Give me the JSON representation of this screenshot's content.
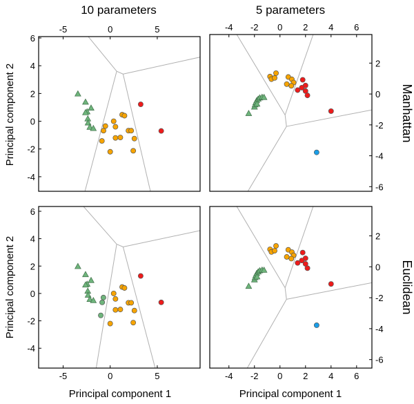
{
  "figure": {
    "column_titles": [
      "10 parameters",
      "5 parameters"
    ],
    "row_labels": [
      "Manhattan",
      "Euclidean"
    ],
    "ylabels": [
      "Principal component 2",
      "Principal component 2"
    ],
    "xlabels": [
      "Principal component 1",
      "Principal component 1"
    ],
    "colors": {
      "green": "#6fb57c",
      "orange": "#f7a400",
      "red": "#ee1b1b",
      "blue": "#1a9ee8",
      "edge": "#555555",
      "voronoi": "#b0b0b0"
    }
  },
  "chart_data": [
    {
      "type": "scatter",
      "panel": "10 parameters / Manhattan",
      "xlim": [
        -7.6,
        9.55
      ],
      "ylim": [
        -5.05,
        6.1
      ],
      "xticks": [
        -5,
        0,
        5
      ],
      "yticks": [
        6,
        4,
        2,
        0,
        -2,
        -4
      ],
      "xtick_side": "top",
      "ytick_side": "left",
      "series": [
        {
          "name": "cluster-green-triangle",
          "marker": "triangle",
          "color": "green",
          "points": [
            [
              -3.43,
              1.97
            ],
            [
              -2.62,
              1.38
            ],
            [
              -2.03,
              0.95
            ],
            [
              -2.45,
              0.68
            ],
            [
              -2.62,
              0.62
            ],
            [
              -2.38,
              0.17
            ],
            [
              -2.35,
              -0.12
            ],
            [
              -2.16,
              -0.43
            ],
            [
              -1.79,
              -0.52
            ]
          ]
        },
        {
          "name": "cluster-orange",
          "marker": "circle",
          "color": "orange",
          "points": [
            [
              1.27,
              0.47
            ],
            [
              1.52,
              0.4
            ],
            [
              0.37,
              0
            ],
            [
              -0.51,
              -0.35
            ],
            [
              0.56,
              -0.4
            ],
            [
              -0.71,
              -0.68
            ],
            [
              1.94,
              -0.68
            ],
            [
              2.23,
              -0.68
            ],
            [
              0.56,
              -1.2
            ],
            [
              1.08,
              -1.17
            ],
            [
              2.57,
              -1.25
            ],
            [
              -0.88,
              -1.42
            ],
            [
              0,
              -2.2
            ],
            [
              2.45,
              -2.13
            ]
          ]
        },
        {
          "name": "cluster-red",
          "marker": "circle",
          "color": "red",
          "points": [
            [
              3.24,
              1.22
            ],
            [
              5.42,
              -0.7
            ]
          ]
        }
      ],
      "voronoi": [
        [
          [
            -2.57,
            6.3
          ],
          [
            0.69,
            3.6
          ]
        ],
        [
          [
            0.69,
            3.6
          ],
          [
            1.37,
            3.4
          ]
        ],
        [
          [
            1.37,
            3.4
          ],
          [
            9.6,
            4.63
          ]
        ],
        [
          [
            0.69,
            3.6
          ],
          [
            -2.7,
            -5.1
          ]
        ],
        [
          [
            1.37,
            3.4
          ],
          [
            4.29,
            -5.1
          ]
        ]
      ]
    },
    {
      "type": "scatter",
      "panel": "5 parameters / Manhattan",
      "xlim": [
        -5.5,
        7.2
      ],
      "ylim": [
        -6.3,
        3.85
      ],
      "xticks": [
        -4,
        -2,
        0,
        2,
        4,
        6
      ],
      "yticks": [
        2,
        0,
        -2,
        -4,
        -6
      ],
      "xtick_side": "top",
      "ytick_side": "right",
      "series": [
        {
          "name": "cluster-green-triangle",
          "marker": "triangle",
          "color": "green",
          "points": [
            [
              -2.45,
              -1.26
            ],
            [
              -2.0,
              -0.84
            ],
            [
              -1.95,
              -0.7
            ],
            [
              -1.89,
              -0.55
            ],
            [
              -1.82,
              -0.43
            ],
            [
              -1.71,
              -0.33
            ],
            [
              -1.58,
              -0.25
            ],
            [
              -1.4,
              -0.21
            ],
            [
              -1.25,
              -0.22
            ],
            [
              -1.8,
              -0.65
            ]
          ]
        },
        {
          "name": "cluster-orange",
          "marker": "circle",
          "color": "orange",
          "points": [
            [
              -0.78,
              1.13
            ],
            [
              -0.67,
              0.96
            ],
            [
              -0.42,
              1.04
            ],
            [
              -0.31,
              1.35
            ],
            [
              0.65,
              1.1
            ],
            [
              0.93,
              0.95
            ],
            [
              1.07,
              0.74
            ],
            [
              0.53,
              0.64
            ],
            [
              0.89,
              0.53
            ]
          ]
        },
        {
          "name": "cluster-red",
          "marker": "circle",
          "color": "red",
          "points": [
            [
              1.78,
              0.92
            ],
            [
              2.0,
              0.55
            ],
            [
              1.71,
              0.41
            ],
            [
              1.38,
              0.25
            ],
            [
              2.0,
              0.19
            ],
            [
              2.15,
              -0.09
            ],
            [
              4.0,
              -1.11
            ]
          ]
        },
        {
          "name": "cluster-blue",
          "marker": "circle",
          "color": "blue",
          "points": [
            [
              2.87,
              -3.78
            ]
          ]
        }
      ],
      "voronoi": [
        [
          [
            -3.42,
            3.9
          ],
          [
            0.4,
            -1.36
          ]
        ],
        [
          [
            0.4,
            -1.36
          ],
          [
            2.62,
            3.9
          ]
        ],
        [
          [
            0.4,
            -1.36
          ],
          [
            0.51,
            -2.1
          ]
        ],
        [
          [
            0.51,
            -2.1
          ],
          [
            7.25,
            -1.02
          ]
        ],
        [
          [
            0.51,
            -2.1
          ],
          [
            -2.55,
            -6.35
          ]
        ]
      ]
    },
    {
      "type": "scatter",
      "panel": "10 parameters / Euclidean",
      "xlim": [
        -7.6,
        9.55
      ],
      "ylim": [
        -5.45,
        6.35
      ],
      "xticks": [
        -5,
        0,
        5
      ],
      "yticks": [
        6,
        4,
        2,
        0,
        -2,
        -4
      ],
      "xtick_side": "bottom",
      "ytick_side": "left",
      "series": [
        {
          "name": "cluster-green-triangle",
          "marker": "triangle",
          "color": "green",
          "points": [
            [
              -3.43,
              1.97
            ],
            [
              -2.62,
              1.38
            ],
            [
              -2.03,
              0.95
            ],
            [
              -2.45,
              0.68
            ],
            [
              -2.62,
              0.62
            ],
            [
              -2.38,
              0.17
            ],
            [
              -2.35,
              -0.12
            ],
            [
              -2.16,
              -0.43
            ],
            [
              -1.79,
              -0.52
            ]
          ]
        },
        {
          "name": "cluster-green-circle",
          "marker": "circle",
          "color": "green",
          "points": [
            [
              -0.72,
              -0.3
            ],
            [
              -0.85,
              -0.65
            ],
            [
              -1.0,
              -1.6
            ]
          ]
        },
        {
          "name": "cluster-orange",
          "marker": "circle",
          "color": "orange",
          "points": [
            [
              1.27,
              0.47
            ],
            [
              1.52,
              0.4
            ],
            [
              0.37,
              0
            ],
            [
              0.56,
              -0.4
            ],
            [
              1.94,
              -0.68
            ],
            [
              2.23,
              -0.68
            ],
            [
              0.56,
              -1.2
            ],
            [
              1.08,
              -1.17
            ],
            [
              2.57,
              -1.25
            ],
            [
              0,
              -2.2
            ],
            [
              2.45,
              -2.13
            ]
          ]
        },
        {
          "name": "cluster-red",
          "marker": "circle",
          "color": "red",
          "points": [
            [
              3.24,
              1.28
            ],
            [
              5.42,
              -0.65
            ]
          ]
        }
      ],
      "voronoi": [
        [
          [
            -2.9,
            6.4
          ],
          [
            0.69,
            3.6
          ]
        ],
        [
          [
            0.69,
            3.6
          ],
          [
            1.37,
            3.4
          ]
        ],
        [
          [
            1.37,
            3.4
          ],
          [
            9.6,
            4.6
          ]
        ],
        [
          [
            0.69,
            3.6
          ],
          [
            -1.5,
            -5.5
          ]
        ],
        [
          [
            1.37,
            3.4
          ],
          [
            4.8,
            -5.5
          ]
        ]
      ]
    },
    {
      "type": "scatter",
      "panel": "5 parameters / Euclidean",
      "xlim": [
        -5.5,
        7.2
      ],
      "ylim": [
        -6.55,
        3.9
      ],
      "xticks": [
        -4,
        -2,
        0,
        2,
        4,
        6
      ],
      "yticks": [
        2,
        0,
        -2,
        -4,
        -6
      ],
      "xtick_side": "bottom",
      "ytick_side": "right",
      "series": [
        {
          "name": "cluster-green-triangle",
          "marker": "triangle",
          "color": "green",
          "points": [
            [
              -2.45,
              -1.26
            ],
            [
              -2.0,
              -0.84
            ],
            [
              -1.95,
              -0.7
            ],
            [
              -1.89,
              -0.55
            ],
            [
              -1.82,
              -0.43
            ],
            [
              -1.71,
              -0.33
            ],
            [
              -1.58,
              -0.25
            ],
            [
              -1.4,
              -0.21
            ],
            [
              -1.25,
              -0.22
            ],
            [
              -1.8,
              -0.65
            ]
          ]
        },
        {
          "name": "cluster-orange",
          "marker": "circle",
          "color": "orange",
          "points": [
            [
              -0.78,
              1.13
            ],
            [
              -0.67,
              0.96
            ],
            [
              -0.42,
              1.04
            ],
            [
              -0.31,
              1.35
            ],
            [
              0.65,
              1.1
            ],
            [
              0.93,
              0.95
            ],
            [
              1.07,
              0.74
            ],
            [
              0.53,
              0.64
            ],
            [
              0.89,
              0.53
            ]
          ]
        },
        {
          "name": "cluster-red",
          "marker": "circle",
          "color": "red",
          "points": [
            [
              1.78,
              0.92
            ],
            [
              2.0,
              0.55
            ],
            [
              1.71,
              0.41
            ],
            [
              1.38,
              0.25
            ],
            [
              2.0,
              0.19
            ],
            [
              2.15,
              -0.09
            ],
            [
              4.0,
              -1.11
            ]
          ]
        },
        {
          "name": "cluster-blue",
          "marker": "circle",
          "color": "blue",
          "points": [
            [
              2.87,
              -3.78
            ]
          ]
        }
      ],
      "voronoi": [
        [
          [
            -3.42,
            3.95
          ],
          [
            0.4,
            -1.36
          ]
        ],
        [
          [
            0.4,
            -1.36
          ],
          [
            2.62,
            3.95
          ]
        ],
        [
          [
            0.4,
            -1.36
          ],
          [
            0.51,
            -2.1
          ]
        ],
        [
          [
            0.51,
            -2.1
          ],
          [
            7.25,
            -1.02
          ]
        ],
        [
          [
            0.51,
            -2.1
          ],
          [
            -2.6,
            -6.6
          ]
        ]
      ]
    }
  ]
}
